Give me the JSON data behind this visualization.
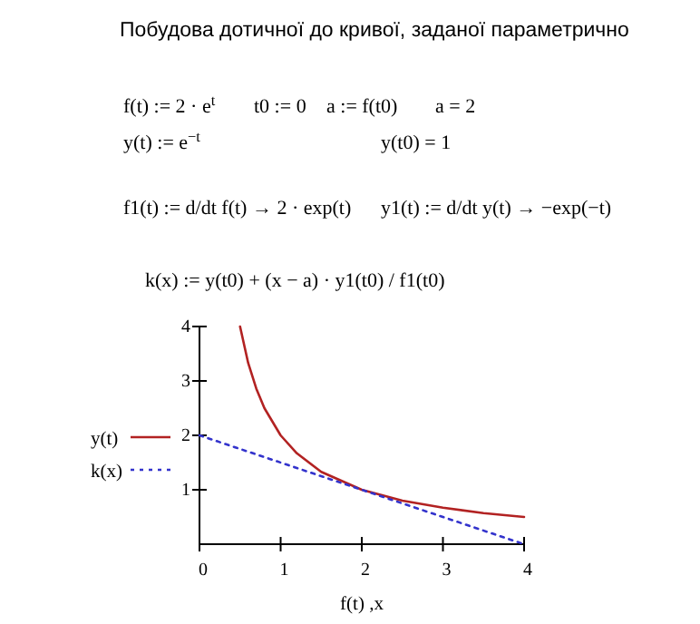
{
  "chart_data": {
    "type": "line",
    "title": "Побудова дотичної до кривої, заданої параметрично",
    "annotations": [
      "f(t) := 2 · e$^{t}$",
      "t0 := 0",
      "a := f(t0)",
      "a = 2",
      "y(t) := e$^{−t}$",
      "y(t0) = 1",
      "f1(t) := d/dt f(t) → 2 · exp(t)",
      "y1(t) := d/dt y(t) → −exp(−t)",
      "k(x) := y(t0) + (x − a) · y1(t0) / f1(t0)"
    ],
    "xlabel": "f(t) ,x",
    "xlim": [
      0,
      4
    ],
    "xticks": [
      0,
      1,
      2,
      3,
      4
    ],
    "ylim": [
      0,
      4
    ],
    "yticks": [
      1,
      2,
      3,
      4
    ],
    "legend": "left",
    "grid": false,
    "series": [
      {
        "name": "y(t)",
        "color": "#b22222",
        "line_style": "solid",
        "x": [
          0.5,
          0.6,
          0.7,
          0.8,
          1,
          1.2,
          1.5,
          2,
          2.5,
          3,
          3.5,
          4
        ],
        "values": [
          4,
          3.33,
          2.86,
          2.5,
          2,
          1.67,
          1.33,
          1,
          0.8,
          0.67,
          0.57,
          0.5
        ]
      },
      {
        "name": "k(x)",
        "color": "#3333cc",
        "line_style": "dotted",
        "x": [
          0,
          4
        ],
        "values": [
          2,
          0
        ]
      }
    ]
  }
}
